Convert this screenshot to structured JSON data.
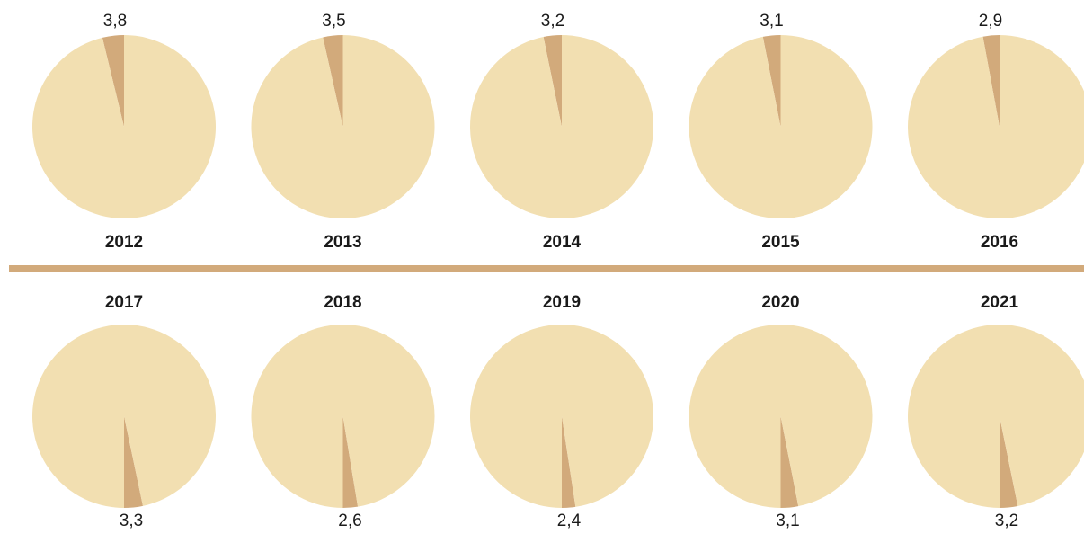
{
  "chart_data": [
    {
      "type": "pie",
      "title": "2012",
      "values": [
        3.8,
        96.2
      ],
      "value_labels": [
        "3,8",
        null
      ],
      "colors": [
        "#d2aa7b",
        "#f2dfb1"
      ],
      "slice_start": "top"
    },
    {
      "type": "pie",
      "title": "2013",
      "values": [
        3.5,
        96.5
      ],
      "value_labels": [
        "3,5",
        null
      ],
      "colors": [
        "#d2aa7b",
        "#f2dfb1"
      ],
      "slice_start": "top"
    },
    {
      "type": "pie",
      "title": "2014",
      "values": [
        3.2,
        96.8
      ],
      "value_labels": [
        "3,2",
        null
      ],
      "colors": [
        "#d2aa7b",
        "#f2dfb1"
      ],
      "slice_start": "top"
    },
    {
      "type": "pie",
      "title": "2015",
      "values": [
        3.1,
        96.9
      ],
      "value_labels": [
        "3,1",
        null
      ],
      "colors": [
        "#d2aa7b",
        "#f2dfb1"
      ],
      "slice_start": "top"
    },
    {
      "type": "pie",
      "title": "2016",
      "values": [
        2.9,
        97.1
      ],
      "value_labels": [
        "2,9",
        null
      ],
      "colors": [
        "#d2aa7b",
        "#f2dfb1"
      ],
      "slice_start": "top"
    },
    {
      "type": "pie",
      "title": "2017",
      "values": [
        3.3,
        96.7
      ],
      "value_labels": [
        "3,3",
        null
      ],
      "colors": [
        "#d2aa7b",
        "#f2dfb1"
      ],
      "slice_start": "bottom"
    },
    {
      "type": "pie",
      "title": "2018",
      "values": [
        2.6,
        97.4
      ],
      "value_labels": [
        "2,6",
        null
      ],
      "colors": [
        "#d2aa7b",
        "#f2dfb1"
      ],
      "slice_start": "bottom"
    },
    {
      "type": "pie",
      "title": "2019",
      "values": [
        2.4,
        97.6
      ],
      "value_labels": [
        "2,4",
        null
      ],
      "colors": [
        "#d2aa7b",
        "#f2dfb1"
      ],
      "slice_start": "bottom"
    },
    {
      "type": "pie",
      "title": "2020",
      "values": [
        3.1,
        96.9
      ],
      "value_labels": [
        "3,1",
        null
      ],
      "colors": [
        "#d2aa7b",
        "#f2dfb1"
      ],
      "slice_start": "bottom"
    },
    {
      "type": "pie",
      "title": "2021",
      "values": [
        3.2,
        96.8
      ],
      "value_labels": [
        "3,2",
        null
      ],
      "colors": [
        "#d2aa7b",
        "#f2dfb1"
      ],
      "slice_start": "bottom"
    }
  ]
}
